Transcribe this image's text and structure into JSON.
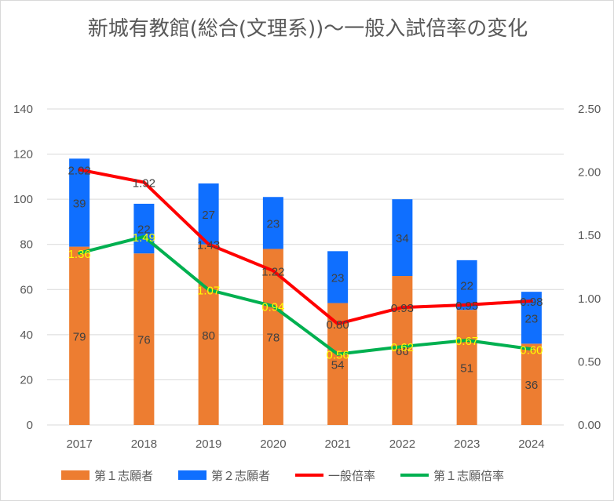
{
  "chart_data": {
    "type": "bar+line",
    "title": "新城有教館(総合(文理系))～一般入試倍率の変化",
    "categories": [
      "2017",
      "2018",
      "2019",
      "2020",
      "2021",
      "2022",
      "2023",
      "2024"
    ],
    "series": [
      {
        "name": "第１志願者",
        "kind": "bar",
        "axis": "left",
        "stack": "a",
        "color": "#ED7D31",
        "values": [
          79,
          76,
          80,
          78,
          54,
          66,
          51,
          36
        ]
      },
      {
        "name": "第２志願者",
        "kind": "bar",
        "axis": "left",
        "stack": "a",
        "color": "#0F6FFF",
        "values": [
          39,
          22,
          27,
          23,
          23,
          34,
          22,
          23
        ]
      },
      {
        "name": "一般倍率",
        "kind": "line",
        "axis": "right",
        "color": "#FF0000",
        "values": [
          2.02,
          1.92,
          1.43,
          1.22,
          0.8,
          0.93,
          0.95,
          0.98
        ]
      },
      {
        "name": "第１志願倍率",
        "kind": "line",
        "axis": "right",
        "color": "#00B050",
        "values": [
          1.36,
          1.49,
          1.07,
          0.94,
          0.56,
          0.62,
          0.67,
          0.6
        ]
      }
    ],
    "left_axis": {
      "ticks": [
        "0",
        "20",
        "40",
        "60",
        "80",
        "100",
        "120",
        "140"
      ],
      "ylim": [
        0,
        140
      ]
    },
    "right_axis": {
      "ticks": [
        "0.00",
        "0.50",
        "1.00",
        "1.50",
        "2.00",
        "2.50"
      ],
      "ylim": [
        0,
        2.5
      ]
    },
    "grid": true,
    "legend": "bottom"
  }
}
